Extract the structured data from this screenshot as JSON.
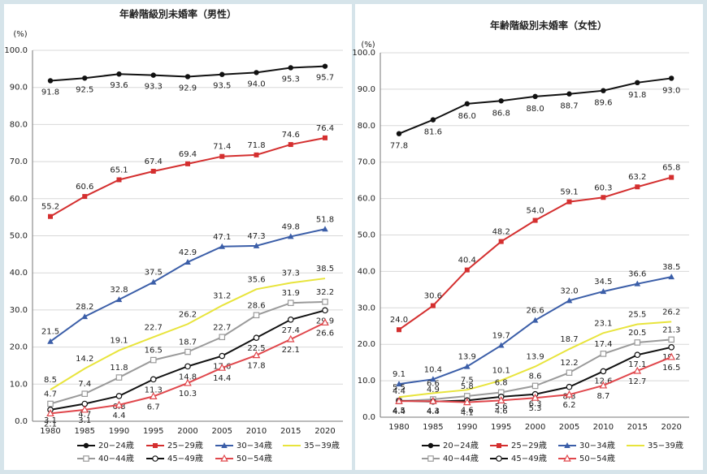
{
  "chart_data": [
    {
      "type": "line",
      "title": "年齢階級別未婚率（男性）",
      "y_unit": "(%)",
      "categories": [
        "1980",
        "1985",
        "1990",
        "1995",
        "2000",
        "2005",
        "2010",
        "2015",
        "2020"
      ],
      "ylim": [
        0,
        100
      ],
      "yticks": [
        {
          "value": 0,
          "label": "0.0"
        },
        {
          "value": 10,
          "label": "10.0"
        },
        {
          "value": 20,
          "label": "20.0"
        },
        {
          "value": 30,
          "label": "30.0"
        },
        {
          "value": 40,
          "label": "40.0"
        },
        {
          "value": 50,
          "label": "50.0"
        },
        {
          "value": 60,
          "label": "60.0"
        },
        {
          "value": 70,
          "label": "70.0"
        },
        {
          "value": 80,
          "label": "80.0"
        },
        {
          "value": 90,
          "label": "90.0"
        },
        {
          "value": 100,
          "label": "100.0"
        }
      ],
      "grid": true,
      "series": [
        {
          "name": "20−24歳",
          "color": "#111111",
          "marker": "circle",
          "values": [
            91.8,
            92.5,
            93.6,
            93.3,
            92.9,
            93.5,
            94.0,
            95.3,
            95.7
          ],
          "value_labels": [
            "91.8",
            "92.5",
            "93.6",
            "93.3",
            "92.9",
            "93.5",
            "94.0",
            "95.3",
            "95.7"
          ]
        },
        {
          "name": "25−29歳",
          "color": "#d42f2f",
          "marker": "square",
          "values": [
            55.2,
            60.6,
            65.1,
            67.4,
            69.4,
            71.4,
            71.8,
            74.6,
            76.4
          ],
          "value_labels": [
            "55.2",
            "60.6",
            "65.1",
            "67.4",
            "69.4",
            "71.4",
            "71.8",
            "74.6",
            "76.4"
          ]
        },
        {
          "name": "30−34歳",
          "color": "#3b5ea8",
          "marker": "triangle",
          "values": [
            21.5,
            28.2,
            32.8,
            37.5,
            42.9,
            47.1,
            47.3,
            49.8,
            51.8
          ],
          "value_labels": [
            "21.5",
            "28.2",
            "32.8",
            "37.5",
            "42.9",
            "47.1",
            "47.3",
            "49.8",
            "51.8"
          ]
        },
        {
          "name": "35−39歳",
          "color": "#e8e43c",
          "marker": "none",
          "values": [
            8.5,
            14.2,
            19.1,
            22.7,
            26.2,
            31.2,
            35.6,
            37.3,
            38.5
          ],
          "value_labels": [
            "8.5",
            "14.2",
            "19.1",
            "22.7",
            "26.2",
            "31.2",
            "35.6",
            "37.3",
            "38.5"
          ]
        },
        {
          "name": "40−44歳",
          "color": "#9a9a9a",
          "marker": "open-square",
          "values": [
            4.7,
            7.4,
            11.8,
            16.5,
            18.7,
            22.7,
            28.6,
            31.9,
            32.2
          ],
          "value_labels": [
            "4.7",
            "7.4",
            "11.8",
            "16.5",
            "18.7",
            "22.7",
            "28.6",
            "31.9",
            "32.2"
          ]
        },
        {
          "name": "45−49歳",
          "color": "#111111",
          "marker": "open-circle",
          "values": [
            3.1,
            4.7,
            6.8,
            11.3,
            14.8,
            17.6,
            22.5,
            27.4,
            29.9
          ],
          "value_labels": [
            "3.1",
            "4.7",
            "6.8",
            "11.3",
            "14.8",
            "17.6",
            "22.5",
            "27.4",
            "29.9"
          ]
        },
        {
          "name": "50−54歳",
          "color": "#e0474c",
          "marker": "open-triangle",
          "values": [
            2.1,
            3.1,
            4.4,
            6.7,
            10.3,
            14.4,
            17.8,
            22.1,
            26.6
          ],
          "value_labels": [
            "2.1",
            "3.1",
            "4.4",
            "6.7",
            "10.3",
            "14.4",
            "17.8",
            "22.1",
            "26.6"
          ]
        }
      ]
    },
    {
      "type": "line",
      "title": "年齢階級別未婚率（女性）",
      "y_unit": "(%)",
      "categories": [
        "1980",
        "1985",
        "1990",
        "1995",
        "2000",
        "2005",
        "2010",
        "2015",
        "2020"
      ],
      "ylim": [
        0,
        100
      ],
      "yticks": [
        {
          "value": 0,
          "label": "0.0"
        },
        {
          "value": 10,
          "label": "10.0"
        },
        {
          "value": 20,
          "label": "20.0"
        },
        {
          "value": 30,
          "label": "30.0"
        },
        {
          "value": 40,
          "label": "40.0"
        },
        {
          "value": 50,
          "label": "50.0"
        },
        {
          "value": 60,
          "label": "60.0"
        },
        {
          "value": 70,
          "label": "70.0"
        },
        {
          "value": 80,
          "label": "80.0"
        },
        {
          "value": 90,
          "label": "90.0"
        },
        {
          "value": 100,
          "label": "100.0"
        }
      ],
      "grid": true,
      "series": [
        {
          "name": "20−24歳",
          "color": "#111111",
          "marker": "circle",
          "values": [
            77.8,
            81.6,
            86.0,
            86.8,
            88.0,
            88.7,
            89.6,
            91.8,
            93.0
          ],
          "value_labels": [
            "77.8",
            "81.6",
            "86.0",
            "86.8",
            "88.0",
            "88.7",
            "89.6",
            "91.8",
            "93.0"
          ]
        },
        {
          "name": "25−29歳",
          "color": "#d42f2f",
          "marker": "square",
          "values": [
            24.0,
            30.6,
            40.4,
            48.2,
            54.0,
            59.1,
            60.3,
            63.2,
            65.8
          ],
          "value_labels": [
            "24.0",
            "30.6",
            "40.4",
            "48.2",
            "54.0",
            "59.1",
            "60.3",
            "63.2",
            "65.8"
          ]
        },
        {
          "name": "30−34歳",
          "color": "#3b5ea8",
          "marker": "triangle",
          "values": [
            9.1,
            10.4,
            13.9,
            19.7,
            26.6,
            32.0,
            34.5,
            36.6,
            38.5
          ],
          "value_labels": [
            "9.1",
            "10.4",
            "13.9",
            "19.7",
            "26.6",
            "32.0",
            "34.5",
            "36.6",
            "38.5"
          ]
        },
        {
          "name": "35−39歳",
          "color": "#e8e43c",
          "marker": "none",
          "values": [
            5.5,
            6.6,
            7.5,
            10.1,
            13.9,
            18.7,
            23.1,
            25.5,
            26.2
          ],
          "value_labels": [
            "5.5",
            "6.6",
            "7.5",
            "10.1",
            "13.9",
            "18.7",
            "23.1",
            "25.5",
            "26.2"
          ]
        },
        {
          "name": "40−44歳",
          "color": "#9a9a9a",
          "marker": "open-square",
          "values": [
            4.4,
            4.9,
            5.8,
            6.8,
            8.6,
            12.2,
            17.4,
            20.5,
            21.3
          ],
          "value_labels": [
            "4.4",
            "4.9",
            "5.8",
            "6.8",
            "8.6",
            "12.2",
            "17.4",
            "20.5",
            "21.3"
          ]
        },
        {
          "name": "45−49歳",
          "color": "#111111",
          "marker": "open-circle",
          "values": [
            4.5,
            4.3,
            4.6,
            5.6,
            6.3,
            8.3,
            12.6,
            17.1,
            19.2
          ],
          "value_labels": [
            "4.5",
            "4.3",
            "4.6",
            "5.6",
            "6.3",
            "8.3",
            "12.6",
            "17.1",
            "19.2"
          ]
        },
        {
          "name": "50−54歳",
          "color": "#e0474c",
          "marker": "open-triangle",
          "values": [
            4.4,
            4.4,
            4.1,
            4.6,
            5.3,
            6.2,
            8.7,
            12.7,
            16.5
          ],
          "value_labels": [
            "4.4",
            "4.4",
            "4.1",
            "4.6",
            "5.3",
            "6.2",
            "8.7",
            "12.7",
            "16.5"
          ]
        }
      ]
    }
  ]
}
